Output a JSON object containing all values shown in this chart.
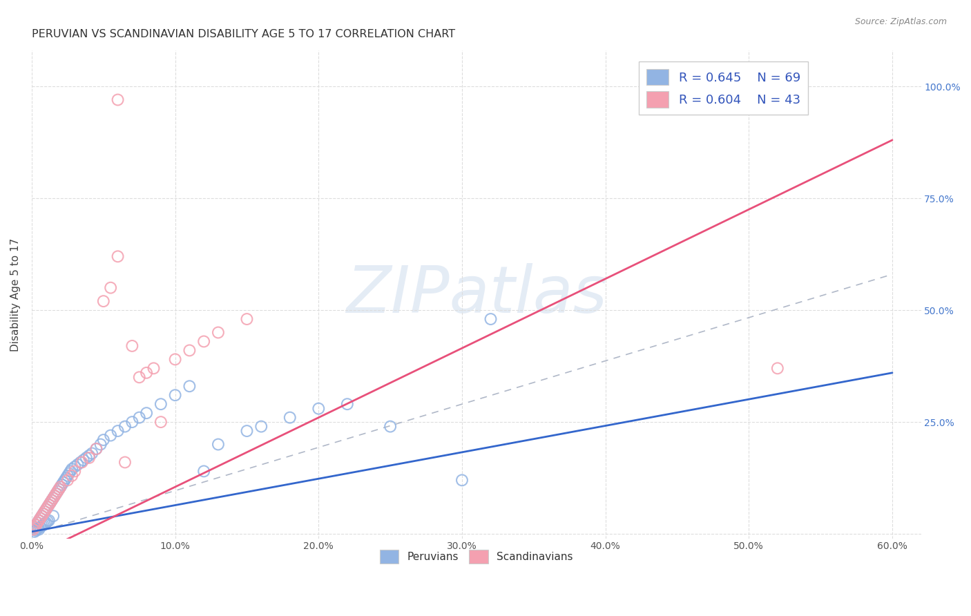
{
  "title": "PERUVIAN VS SCANDINAVIAN DISABILITY AGE 5 TO 17 CORRELATION CHART",
  "source": "Source: ZipAtlas.com",
  "ylabel_label": "Disability Age 5 to 17",
  "xlim": [
    0.0,
    0.62
  ],
  "ylim": [
    -0.01,
    1.08
  ],
  "legend_r1": "R = 0.645",
  "legend_n1": "N = 69",
  "legend_r2": "R = 0.604",
  "legend_n2": "N = 43",
  "peruvian_color": "#92b4e3",
  "scandinavian_color": "#f4a0b0",
  "peruvian_line_color": "#3366cc",
  "scandinavian_line_color": "#e8507a",
  "peruvian_line": [
    [
      0.0,
      0.005
    ],
    [
      0.6,
      0.36
    ]
  ],
  "scandinavian_line": [
    [
      0.0,
      -0.05
    ],
    [
      0.6,
      0.88
    ]
  ],
  "dash_line": [
    [
      0.0,
      0.0
    ],
    [
      0.6,
      0.58
    ]
  ],
  "bg_color": "#ffffff",
  "grid_color": "#dddddd",
  "watermark_text": "ZIPatlas",
  "x_ticks": [
    0.0,
    0.1,
    0.2,
    0.3,
    0.4,
    0.5,
    0.6
  ],
  "x_tick_labels": [
    "0.0%",
    "10.0%",
    "20.0%",
    "30.0%",
    "40.0%",
    "50.0%",
    "60.0%"
  ],
  "y_ticks": [
    0.0,
    0.25,
    0.5,
    0.75,
    1.0
  ],
  "y_tick_labels": [
    "",
    "25.0%",
    "50.0%",
    "75.0%",
    "100.0%"
  ],
  "peru_x": [
    0.001,
    0.002,
    0.002,
    0.003,
    0.003,
    0.004,
    0.004,
    0.005,
    0.005,
    0.006,
    0.006,
    0.007,
    0.007,
    0.008,
    0.008,
    0.009,
    0.009,
    0.01,
    0.01,
    0.011,
    0.011,
    0.012,
    0.012,
    0.013,
    0.014,
    0.015,
    0.015,
    0.016,
    0.017,
    0.018,
    0.019,
    0.02,
    0.021,
    0.022,
    0.023,
    0.024,
    0.025,
    0.026,
    0.027,
    0.028,
    0.03,
    0.032,
    0.034,
    0.036,
    0.038,
    0.04,
    0.042,
    0.045,
    0.048,
    0.05,
    0.055,
    0.06,
    0.065,
    0.07,
    0.075,
    0.08,
    0.09,
    0.1,
    0.11,
    0.12,
    0.13,
    0.15,
    0.16,
    0.18,
    0.2,
    0.22,
    0.25,
    0.3,
    0.32
  ],
  "peru_y": [
    0.01,
    0.015,
    0.005,
    0.02,
    0.008,
    0.025,
    0.012,
    0.03,
    0.01,
    0.035,
    0.015,
    0.04,
    0.018,
    0.045,
    0.02,
    0.05,
    0.022,
    0.055,
    0.025,
    0.06,
    0.028,
    0.065,
    0.03,
    0.07,
    0.075,
    0.08,
    0.04,
    0.085,
    0.09,
    0.095,
    0.1,
    0.105,
    0.11,
    0.115,
    0.12,
    0.125,
    0.13,
    0.135,
    0.14,
    0.145,
    0.15,
    0.155,
    0.16,
    0.165,
    0.17,
    0.175,
    0.18,
    0.19,
    0.2,
    0.21,
    0.22,
    0.23,
    0.24,
    0.25,
    0.26,
    0.27,
    0.29,
    0.31,
    0.33,
    0.14,
    0.2,
    0.23,
    0.24,
    0.26,
    0.28,
    0.29,
    0.24,
    0.12,
    0.48
  ],
  "scan_x": [
    0.001,
    0.002,
    0.003,
    0.004,
    0.005,
    0.006,
    0.007,
    0.008,
    0.009,
    0.01,
    0.011,
    0.012,
    0.013,
    0.014,
    0.015,
    0.016,
    0.017,
    0.018,
    0.019,
    0.02,
    0.025,
    0.028,
    0.03,
    0.035,
    0.04,
    0.045,
    0.05,
    0.055,
    0.06,
    0.065,
    0.07,
    0.075,
    0.08,
    0.085,
    0.09,
    0.1,
    0.11,
    0.12,
    0.13,
    0.15,
    0.5,
    0.52,
    0.06
  ],
  "scan_y": [
    0.01,
    0.015,
    0.02,
    0.025,
    0.03,
    0.035,
    0.04,
    0.045,
    0.05,
    0.055,
    0.06,
    0.065,
    0.07,
    0.075,
    0.08,
    0.085,
    0.09,
    0.095,
    0.1,
    0.105,
    0.12,
    0.13,
    0.14,
    0.16,
    0.17,
    0.19,
    0.52,
    0.55,
    0.62,
    0.16,
    0.42,
    0.35,
    0.36,
    0.37,
    0.25,
    0.39,
    0.41,
    0.43,
    0.45,
    0.48,
    0.97,
    0.37,
    0.97
  ]
}
